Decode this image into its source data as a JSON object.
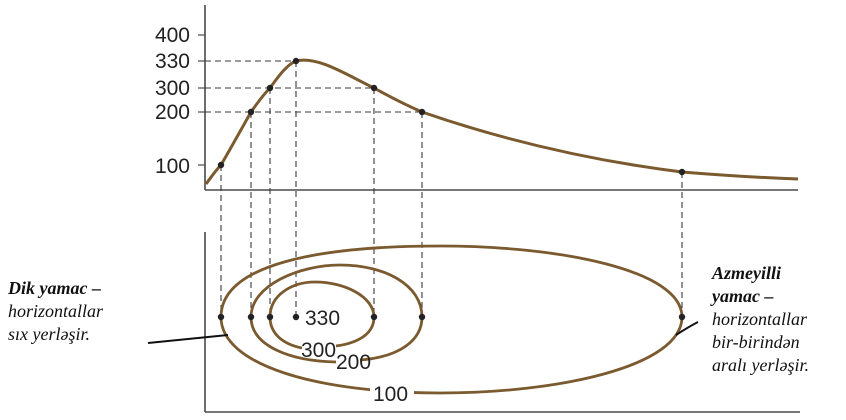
{
  "profile": {
    "y_ticks": [
      "400",
      "330",
      "300",
      "200",
      "100"
    ]
  },
  "contours": {
    "labels": [
      "330",
      "300",
      "200",
      "100"
    ]
  },
  "notes": {
    "left": {
      "title": "Dik yamac",
      "dash": " –",
      "line1": "horizontallar",
      "line2": "sıx yerləşir."
    },
    "right": {
      "title_line1": "Azmeyilli",
      "title_line2": "yamac",
      "dash": " –",
      "line1": "horizontallar",
      "line2": "bir-birindən",
      "line3": "aralı yerləşir."
    }
  },
  "colors": {
    "curve": "#7a5a2e",
    "dash": "#3a3a3a"
  }
}
